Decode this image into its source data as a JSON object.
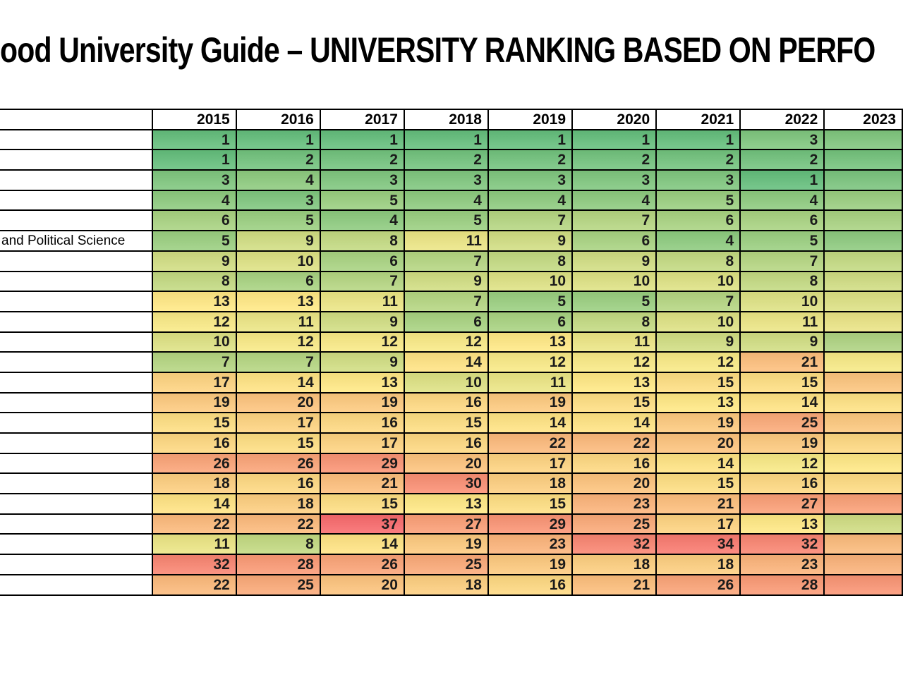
{
  "title": "ood University Guide – UNIVERSITY RANKING BASED ON PERFO",
  "chart_data": {
    "type": "heatmap",
    "title": "ood University Guide – UNIVERSITY RANKING BASED ON PERFO",
    "columns": [
      "2015",
      "2016",
      "2017",
      "2018",
      "2019",
      "2020",
      "2021",
      "2022"
    ],
    "partial_column": "2023",
    "color_scale": {
      "min_value": 1,
      "mid_value": 12.5,
      "max_value": 37,
      "min_color": "#63BE7B",
      "mid_color": "#FFEB84",
      "max_color": "#F8696B"
    },
    "rows": [
      {
        "label": "",
        "values": [
          1,
          1,
          1,
          1,
          1,
          1,
          1,
          3
        ],
        "cut_color": "#7EC57C"
      },
      {
        "label": "",
        "values": [
          1,
          2,
          2,
          2,
          2,
          2,
          2,
          2
        ],
        "cut_color": "#73C27B"
      },
      {
        "label": "",
        "values": [
          3,
          4,
          3,
          3,
          3,
          3,
          3,
          1
        ],
        "cut_color": "#79C37C"
      },
      {
        "label": "",
        "values": [
          4,
          3,
          5,
          4,
          4,
          4,
          5,
          4
        ],
        "cut_color": "#99CD7E"
      },
      {
        "label": "",
        "values": [
          6,
          5,
          4,
          5,
          7,
          7,
          6,
          6
        ],
        "cut_color": "#A7D17F"
      },
      {
        "label": "and Political Science",
        "values": [
          5,
          9,
          8,
          11,
          9,
          6,
          4,
          5
        ],
        "cut_color": "#8CC97D"
      },
      {
        "label": "",
        "values": [
          9,
          10,
          6,
          7,
          8,
          9,
          8,
          7
        ],
        "cut_color": "#C2D980"
      },
      {
        "label": "",
        "values": [
          8,
          6,
          7,
          9,
          10,
          10,
          10,
          8
        ],
        "cut_color": "#CFDC81"
      },
      {
        "label": "",
        "values": [
          13,
          13,
          11,
          7,
          5,
          5,
          7,
          10
        ],
        "cut_color": "#DCE082"
      },
      {
        "label": "",
        "values": [
          12,
          11,
          9,
          6,
          6,
          8,
          10,
          11
        ],
        "cut_color": "#E9E383"
      },
      {
        "label": "",
        "values": [
          10,
          12,
          12,
          12,
          13,
          11,
          9,
          9
        ],
        "cut_color": "#ADD280"
      },
      {
        "label": "",
        "values": [
          7,
          7,
          9,
          14,
          12,
          12,
          12,
          21
        ],
        "cut_color": "#F6E984"
      },
      {
        "label": "",
        "values": [
          17,
          14,
          13,
          10,
          11,
          13,
          15,
          15
        ],
        "cut_color": "#FCC47C"
      },
      {
        "label": "",
        "values": [
          19,
          20,
          19,
          16,
          19,
          15,
          13,
          14
        ],
        "cut_color": "#FEE182"
      },
      {
        "label": "",
        "values": [
          15,
          17,
          16,
          15,
          14,
          14,
          19,
          25
        ],
        "cut_color": "#FCC77C"
      },
      {
        "label": "",
        "values": [
          16,
          15,
          17,
          16,
          22,
          22,
          20,
          19
        ],
        "cut_color": "#FED880"
      },
      {
        "label": "",
        "values": [
          26,
          26,
          29,
          20,
          17,
          16,
          14,
          12
        ],
        "cut_color": "#FFE884"
      },
      {
        "label": "",
        "values": [
          18,
          16,
          21,
          30,
          18,
          20,
          15,
          16
        ],
        "cut_color": "#FEDB81"
      },
      {
        "label": "",
        "values": [
          14,
          18,
          15,
          13,
          15,
          23,
          21,
          27
        ],
        "cut_color": "#FA9F75"
      },
      {
        "label": "",
        "values": [
          22,
          22,
          37,
          27,
          29,
          25,
          17,
          13
        ],
        "cut_color": "#CFDC81"
      },
      {
        "label": "",
        "values": [
          11,
          8,
          14,
          19,
          23,
          32,
          34,
          32
        ],
        "cut_color": "#FBBA7A"
      },
      {
        "label": "",
        "values": [
          32,
          28,
          26,
          25,
          19,
          18,
          18,
          23
        ],
        "cut_color": "#FBB279"
      },
      {
        "label": "",
        "values": [
          22,
          25,
          20,
          18,
          16,
          21,
          26,
          28
        ],
        "cut_color": "#FA9473"
      }
    ]
  }
}
